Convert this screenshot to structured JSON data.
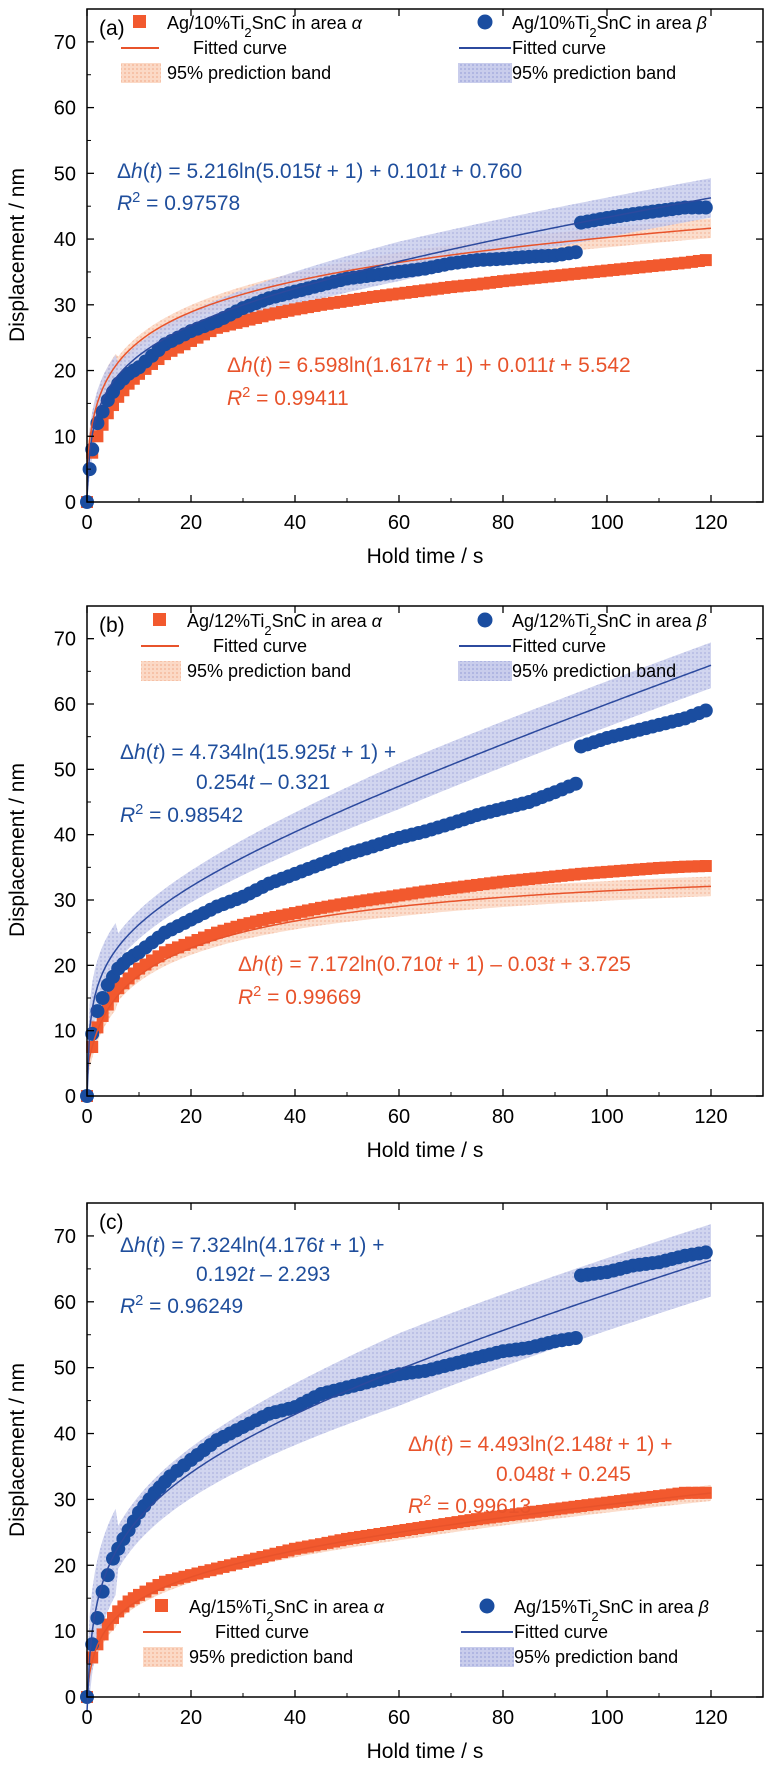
{
  "colors": {
    "alpha": "#f2592e",
    "alpha_line": "#e8532b",
    "beta": "#1a4da0",
    "beta_line": "#2c4a9e",
    "beta_band": "#b8bde6",
    "alpha_band": "#f7cdb7"
  },
  "chart_data": [
    {
      "type": "scatter",
      "panel_label": "(a)",
      "xlabel": "Hold time / s",
      "ylabel": "Displacement / nm",
      "xlim": [
        0,
        130
      ],
      "ylim": [
        0,
        75
      ],
      "xticks": [
        0,
        20,
        40,
        60,
        80,
        100,
        120
      ],
      "yticks": [
        0,
        10,
        20,
        30,
        40,
        50,
        60,
        70
      ],
      "grid": false,
      "legend_position": "top",
      "legend": {
        "alpha_series": "Ag/10%Ti2SnC in area α",
        "alpha_fit": "Fitted curve",
        "alpha_band": "95% prediction band",
        "beta_series": "Ag/10%Ti2SnC in area β",
        "beta_fit": "Fitted curve",
        "beta_band": "95% prediction band"
      },
      "series": [
        {
          "name": "Ag/10%Ti2SnC in area α",
          "marker": "square",
          "x": [
            0,
            1,
            2,
            4,
            6,
            8,
            10,
            15,
            20,
            25,
            30,
            35,
            40,
            45,
            50,
            55,
            60,
            65,
            70,
            75,
            80,
            85,
            90,
            95,
            100,
            105,
            110,
            115,
            119
          ],
          "y": [
            0,
            7.5,
            10,
            13.5,
            16,
            18,
            19.5,
            22.5,
            24.5,
            26.5,
            27.5,
            28.5,
            29.3,
            30,
            30.6,
            31.2,
            31.7,
            32.2,
            32.7,
            33.1,
            33.6,
            34,
            34.4,
            34.8,
            35.2,
            35.6,
            36,
            36.4,
            36.8
          ]
        },
        {
          "name": "Ag/10%Ti2SnC in area β",
          "marker": "circle",
          "x": [
            0,
            0.5,
            1,
            2,
            4,
            6,
            8,
            10,
            15,
            20,
            25,
            30,
            35,
            40,
            45,
            50,
            55,
            60,
            65,
            70,
            75,
            80,
            85,
            90,
            94,
            95,
            100,
            105,
            110,
            115,
            119
          ],
          "y": [
            0,
            5,
            8,
            12,
            15.5,
            18,
            19.5,
            20.5,
            24,
            26,
            27.5,
            29.5,
            31,
            32,
            33,
            34,
            34.5,
            35,
            35.5,
            36.3,
            36.8,
            37,
            37.3,
            37.5,
            38,
            42.5,
            43.2,
            43.8,
            44.3,
            44.8,
            44.8
          ]
        }
      ],
      "fits": [
        {
          "series": "alpha",
          "a": 6.598,
          "b": 1.617,
          "c": 0.011,
          "d": 5.542,
          "band": 1.5
        },
        {
          "series": "beta",
          "a": 5.216,
          "b": 5.015,
          "c": 0.101,
          "d": 0.76,
          "band": 3.0
        }
      ],
      "annotations": {
        "beta_eq_line1": "Δh(t) = 5.216ln(5.015t + 1) + 0.101t + 0.760",
        "beta_r2": "R2 = 0.97578",
        "alpha_eq_line1": "Δh(t) = 6.598ln(1.617t + 1) + 0.011t + 5.542",
        "alpha_r2": "R2 = 0.99411"
      }
    },
    {
      "type": "scatter",
      "panel_label": "(b)",
      "xlabel": "Hold time / s",
      "ylabel": "Displacement / nm",
      "xlim": [
        0,
        130
      ],
      "ylim": [
        0,
        75
      ],
      "xticks": [
        0,
        20,
        40,
        60,
        80,
        100,
        120
      ],
      "yticks": [
        0,
        10,
        20,
        30,
        40,
        50,
        60,
        70
      ],
      "grid": false,
      "legend_position": "top",
      "legend": {
        "alpha_series": "Ag/12%Ti2SnC in area α",
        "alpha_fit": "Fitted curve",
        "alpha_band": "95% prediction band",
        "beta_series": "Ag/12%Ti2SnC in area β",
        "beta_fit": "Fitted curve",
        "beta_band": "95% prediction band"
      },
      "series": [
        {
          "name": "Ag/12%Ti2SnC in area α",
          "marker": "square",
          "x": [
            0,
            1,
            2,
            4,
            6,
            8,
            10,
            15,
            20,
            25,
            30,
            35,
            40,
            45,
            50,
            55,
            60,
            65,
            70,
            75,
            80,
            85,
            90,
            95,
            100,
            105,
            110,
            115,
            119
          ],
          "y": [
            0,
            7.5,
            10.5,
            14,
            16.5,
            18,
            19.5,
            22,
            23.5,
            25,
            26.2,
            27.2,
            28,
            28.8,
            29.5,
            30.1,
            30.7,
            31.3,
            31.8,
            32.3,
            32.8,
            33.2,
            33.6,
            34,
            34.3,
            34.6,
            34.9,
            35.1,
            35.2
          ]
        },
        {
          "name": "Ag/12%Ti2SnC in area β",
          "marker": "circle",
          "x": [
            0,
            1,
            2,
            4,
            6,
            8,
            10,
            15,
            20,
            25,
            30,
            35,
            40,
            45,
            50,
            55,
            60,
            65,
            70,
            75,
            80,
            85,
            90,
            94,
            95,
            100,
            105,
            110,
            115,
            119
          ],
          "y": [
            0,
            9.5,
            13,
            17,
            19.5,
            21,
            22,
            25,
            27,
            29,
            30.5,
            32.5,
            34,
            35.5,
            37,
            38.2,
            39.5,
            40.5,
            41.7,
            43,
            44,
            45,
            46.5,
            47.8,
            53.5,
            54.8,
            55.8,
            56.8,
            57.8,
            59
          ]
        }
      ],
      "fits": [
        {
          "series": "alpha",
          "a": 7.172,
          "b": 0.71,
          "c": -0.03,
          "d": 3.725,
          "band": 1.5
        },
        {
          "series": "beta",
          "a": 4.734,
          "b": 15.925,
          "c": 0.254,
          "d": -0.321,
          "band": 3.5
        }
      ],
      "annotations": {
        "beta_eq_line1": "Δh(t) = 4.734ln(15.925t + 1) +",
        "beta_eq_line2": "0.254t – 0.321",
        "beta_r2": "R2 = 0.98542",
        "alpha_eq_line1": "Δh(t) = 7.172ln(0.710t + 1) – 0.03t + 3.725",
        "alpha_r2": "R2 = 0.99669"
      }
    },
    {
      "type": "scatter",
      "panel_label": "(c)",
      "xlabel": "Hold time / s",
      "ylabel": "Displacement / nm",
      "xlim": [
        0,
        130
      ],
      "ylim": [
        0,
        75
      ],
      "xticks": [
        0,
        20,
        40,
        60,
        80,
        100,
        120
      ],
      "yticks": [
        0,
        10,
        20,
        30,
        40,
        50,
        60,
        70
      ],
      "grid": false,
      "legend_position": "bottom",
      "legend": {
        "alpha_series": "Ag/15%Ti2SnC in area α",
        "alpha_fit": "Fitted curve",
        "alpha_band": "95% prediction band",
        "beta_series": "Ag/15%Ti2SnC in area β",
        "beta_fit": "Fitted curve",
        "beta_band": "95% prediction band"
      },
      "series": [
        {
          "name": "Ag/15%Ti2SnC in area α",
          "marker": "square",
          "x": [
            0,
            1,
            2,
            4,
            6,
            8,
            10,
            15,
            20,
            25,
            30,
            35,
            40,
            45,
            50,
            55,
            60,
            65,
            70,
            75,
            80,
            85,
            90,
            95,
            100,
            105,
            110,
            115,
            119
          ],
          "y": [
            0,
            6,
            8,
            11,
            13,
            14.5,
            15.5,
            17.5,
            18.5,
            19.5,
            20.5,
            21.5,
            22.5,
            23.2,
            24,
            24.6,
            25.2,
            25.8,
            26.4,
            27,
            27.5,
            28,
            28.5,
            29,
            29.5,
            30,
            30.5,
            31,
            31
          ]
        },
        {
          "name": "Ag/15%Ti2SnC in area β",
          "marker": "circle",
          "x": [
            0,
            1,
            2,
            3,
            5,
            7,
            10,
            13,
            16,
            20,
            25,
            30,
            35,
            40,
            45,
            50,
            55,
            60,
            65,
            70,
            75,
            80,
            85,
            90,
            94,
            95,
            100,
            105,
            110,
            115,
            119
          ],
          "y": [
            0,
            8,
            12,
            16,
            21,
            24,
            28,
            31,
            33.5,
            36,
            39,
            41,
            43,
            44,
            46,
            47,
            48,
            49,
            49.5,
            50.5,
            51.5,
            52.5,
            53,
            54,
            54.5,
            64,
            64.5,
            65.5,
            66,
            67,
            67.5
          ]
        }
      ],
      "fits": [
        {
          "series": "alpha",
          "a": 4.493,
          "b": 2.148,
          "c": 0.048,
          "d": 0.245,
          "band": 1.2
        },
        {
          "series": "beta",
          "a": 7.324,
          "b": 4.176,
          "c": 0.192,
          "d": -2.293,
          "band": 5.5
        }
      ],
      "annotations": {
        "beta_eq_line1": "Δh(t) = 7.324ln(4.176t + 1) +",
        "beta_eq_line2": "0.192t – 2.293",
        "beta_r2": "R2 = 0.96249",
        "alpha_eq_line1": "Δh(t) = 4.493ln(2.148t + 1) +",
        "alpha_eq_line2": "0.048t + 0.245",
        "alpha_r2": "R2 = 0.99613"
      }
    }
  ]
}
